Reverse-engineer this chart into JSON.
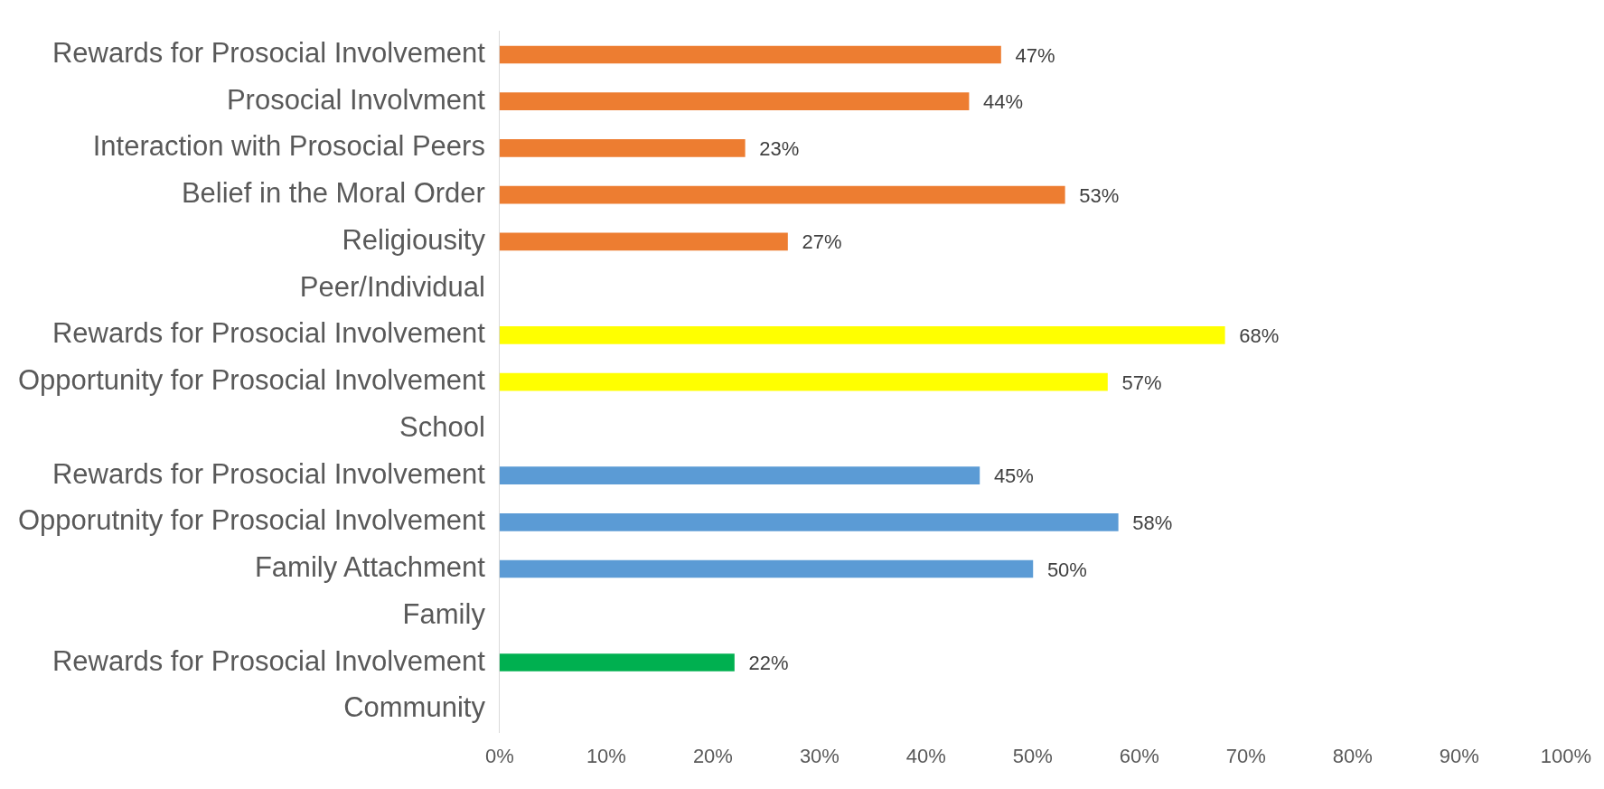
{
  "chart_data": {
    "type": "bar",
    "orientation": "horizontal",
    "categories": [
      "Rewards for Prosocial Involvement",
      "Prosocial Involvment",
      "Interaction with Prosocial Peers",
      "Belief in the Moral Order",
      "Religiousity",
      "Peer/Individual",
      "Rewards for Prosocial Involvement",
      "Opportunity for Prosocial Involvement",
      "School",
      "Rewards for Prosocial Involvement",
      "Opporutnity for Prosocial Involvement",
      "Family Attachment",
      "Family",
      "Rewards for Prosocial Involvement",
      "Community"
    ],
    "values": [
      47,
      44,
      23,
      53,
      27,
      null,
      68,
      57,
      null,
      45,
      58,
      50,
      null,
      22,
      null
    ],
    "colors": [
      "#ed7d31",
      "#ed7d31",
      "#ed7d31",
      "#ed7d31",
      "#ed7d31",
      null,
      "#ffff00",
      "#ffff00",
      null,
      "#5b9bd5",
      "#5b9bd5",
      "#5b9bd5",
      null,
      "#00b050",
      null
    ],
    "value_labels": [
      "47%",
      "44%",
      "23%",
      "53%",
      "27%",
      null,
      "68%",
      "57%",
      null,
      "45%",
      "58%",
      "50%",
      null,
      "22%",
      null
    ],
    "xlim": [
      0,
      100
    ],
    "xticks": [
      {
        "value": 0,
        "label": "0%"
      },
      {
        "value": 10,
        "label": "10%"
      },
      {
        "value": 20,
        "label": "20%"
      },
      {
        "value": 30,
        "label": "30%"
      },
      {
        "value": 40,
        "label": "40%"
      },
      {
        "value": 50,
        "label": "50%"
      },
      {
        "value": 60,
        "label": "60%"
      },
      {
        "value": 70,
        "label": "70%"
      },
      {
        "value": 80,
        "label": "80%"
      },
      {
        "value": 90,
        "label": "90%"
      },
      {
        "value": 100,
        "label": "100%"
      }
    ]
  }
}
